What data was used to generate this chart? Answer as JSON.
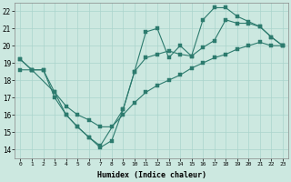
{
  "xlabel": "Humidex (Indice chaleur)",
  "background_color": "#cce8e0",
  "line_color": "#2d7b6e",
  "grid_color": "#aad4cc",
  "xlim": [
    -0.5,
    23.5
  ],
  "ylim": [
    13.5,
    22.5
  ],
  "xticks": [
    0,
    1,
    2,
    3,
    4,
    5,
    6,
    7,
    8,
    9,
    10,
    11,
    12,
    13,
    14,
    15,
    16,
    17,
    18,
    19,
    20,
    21,
    22,
    23
  ],
  "yticks": [
    14,
    15,
    16,
    17,
    18,
    19,
    20,
    21,
    22
  ],
  "line1_x": [
    0,
    1,
    2,
    3,
    4,
    5,
    6,
    7,
    8,
    9,
    10,
    11,
    12,
    13,
    14,
    15,
    16,
    17,
    18,
    19,
    20,
    21,
    22,
    23
  ],
  "line1_y": [
    19.2,
    18.6,
    18.6,
    17.0,
    16.0,
    15.3,
    14.7,
    14.1,
    14.5,
    16.3,
    18.5,
    20.8,
    21.0,
    19.3,
    20.0,
    19.4,
    21.5,
    22.2,
    22.2,
    21.7,
    21.4,
    21.1,
    20.5,
    20.0
  ],
  "line2_x": [
    0,
    1,
    3,
    4,
    5,
    6,
    7,
    9,
    10,
    11,
    12,
    13,
    14,
    15,
    16,
    17,
    18,
    19,
    20,
    21,
    22,
    23
  ],
  "line2_y": [
    19.2,
    18.6,
    17.3,
    16.0,
    15.3,
    14.7,
    14.2,
    16.3,
    18.5,
    19.3,
    19.5,
    19.7,
    19.5,
    19.4,
    19.9,
    20.3,
    21.5,
    21.3,
    21.3,
    21.1,
    20.5,
    20.0
  ],
  "line3_x": [
    0,
    1,
    2,
    3,
    4,
    5,
    6,
    7,
    8,
    9,
    10,
    11,
    12,
    13,
    14,
    15,
    16,
    17,
    18,
    19,
    20,
    21,
    22,
    23
  ],
  "line3_y": [
    18.6,
    18.6,
    18.6,
    17.3,
    16.5,
    16.0,
    15.7,
    15.3,
    15.3,
    16.0,
    16.7,
    17.3,
    17.7,
    18.0,
    18.3,
    18.7,
    19.0,
    19.3,
    19.5,
    19.8,
    20.0,
    20.2,
    20.0,
    20.0
  ],
  "marker_size": 2.5,
  "linewidth": 0.8
}
